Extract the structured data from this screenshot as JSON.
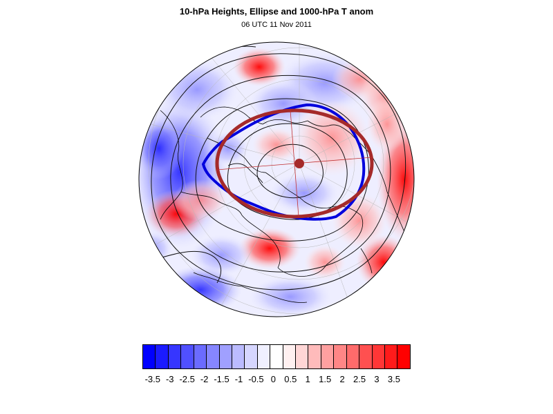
{
  "title": "10-hPa Heights, Ellipse and 1000-hPa T anom",
  "subtitle": "06 UTC 11 Nov 2011",
  "map": {
    "projection": "polar stereographic, North Pole",
    "field": "1000-hPa temperature anomaly (shaded)",
    "contours": "10-hPa geopotential height (black)",
    "vortex_edge_color": "#0000dd",
    "ellipse_color": "#a52a2a",
    "ellipse_center_marker_color": "#a52a2a",
    "anomaly_features": [
      {
        "location": "north Pacific / Bering",
        "sign": "positive"
      },
      {
        "location": "east Asia / Siberia",
        "sign": "positive"
      },
      {
        "location": "western North America",
        "sign": "negative"
      },
      {
        "location": "Canada / Alaska interior",
        "sign": "negative"
      },
      {
        "location": "eastern North America / Atlantic",
        "sign": "positive"
      },
      {
        "location": "Europe",
        "sign": "mixed"
      },
      {
        "location": "north Africa",
        "sign": "negative"
      }
    ]
  },
  "colorbar": {
    "colors": [
      "#0000ff",
      "#1b1bff",
      "#3636ff",
      "#5050ff",
      "#6b6bff",
      "#8686ff",
      "#a0a0ff",
      "#bbbbff",
      "#d6d6ff",
      "#f0f0ff",
      "#ffffff",
      "#fff0f0",
      "#ffd6d6",
      "#ffbbbb",
      "#ffa0a0",
      "#ff8686",
      "#ff6b6b",
      "#ff5050",
      "#ff3636",
      "#ff1b1b",
      "#ff0000"
    ],
    "tick_labels": [
      "-3.5",
      "-3",
      "-2.5",
      "-2",
      "-1.5",
      "-1",
      "-0.5",
      "0",
      "0.5",
      "1",
      "1.5",
      "2",
      "2.5",
      "3",
      "3.5"
    ]
  }
}
